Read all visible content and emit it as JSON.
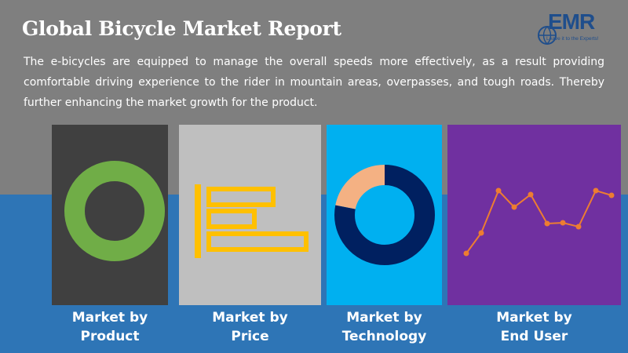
{
  "header": {
    "title": "Global Bicycle Market Report",
    "description": "The e-bicycles are equipped to manage the overall speeds more effectively, as a result providing comfortable driving experience to the rider in mountain areas, overpasses, and tough roads. Thereby further enhancing the market growth for the product."
  },
  "logo": {
    "text": "EMR",
    "tagline": "Leave it to the Experts!"
  },
  "panels": [
    {
      "line1": "Market by",
      "line2": "Product",
      "icon": "donut-chart-icon",
      "color": "#404040"
    },
    {
      "line1": "Market by",
      "line2": "Price",
      "icon": "bar-chart-icon",
      "color": "#bfbfbf"
    },
    {
      "line1": "Market by",
      "line2": "Technology",
      "icon": "donut-chart-icon",
      "color": "#00b0f0"
    },
    {
      "line1": "Market by",
      "line2": "End User",
      "icon": "line-chart-icon",
      "color": "#7030a0"
    }
  ],
  "colors": {
    "top_band": "#7f7f7f",
    "bottom_band": "#2e75b6",
    "donut_green": "#70ad47",
    "donut_blue": "#5b9bd5",
    "bar_yellow": "#ffc000",
    "donut_navy": "#002060",
    "donut_peach": "#f4b183",
    "line_orange": "#ed7d31"
  }
}
